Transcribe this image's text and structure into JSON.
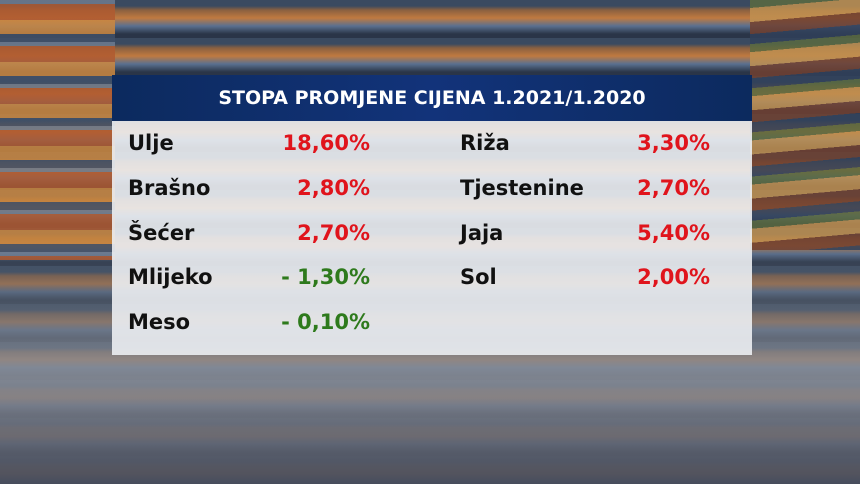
{
  "header": {
    "title": "STOPA PROMJENE CIJENA 1.2021/1.2020"
  },
  "table": {
    "rows": [
      [
        "Ulje",
        "18,60%",
        "Riža",
        "3,30%"
      ],
      [
        "Brašno",
        "2,80%",
        "Tjestenine",
        "2,70%"
      ],
      [
        "Šećer",
        "2,70%",
        "Jaja",
        "5,40%"
      ],
      [
        "Mlijeko",
        "- 1,30%",
        "Sol",
        "2,00%"
      ],
      [
        "Meso",
        "- 0,10%"
      ]
    ]
  }
}
